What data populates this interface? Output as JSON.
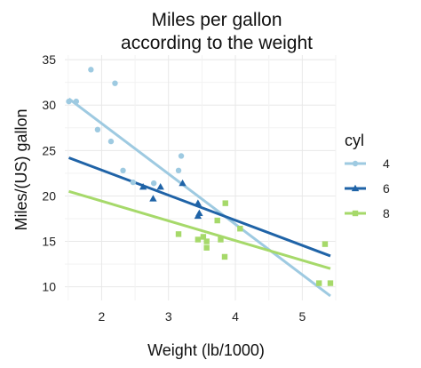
{
  "chart_data": {
    "type": "scatter",
    "title": [
      "Miles per gallon",
      "according to the weight"
    ],
    "xlabel": "Weight (lb/1000)",
    "ylabel": "Miles/(US) gallon",
    "xlim": [
      1.45,
      5.5
    ],
    "ylim": [
      8.5,
      35.5
    ],
    "xticks": [
      2,
      3,
      4,
      5
    ],
    "yticks": [
      10,
      15,
      20,
      25,
      30,
      35
    ],
    "grid": true,
    "legend_title": "cyl",
    "legend_position": "right",
    "series": [
      {
        "name": "4",
        "color": "#9ecae1",
        "marker": "circle",
        "points": [
          [
            1.51,
            30.4
          ],
          [
            1.62,
            30.4
          ],
          [
            1.84,
            33.9
          ],
          [
            1.94,
            27.3
          ],
          [
            2.14,
            26.0
          ],
          [
            2.2,
            32.4
          ],
          [
            2.32,
            22.8
          ],
          [
            2.47,
            21.5
          ],
          [
            2.78,
            21.4
          ],
          [
            3.15,
            22.8
          ],
          [
            3.19,
            24.4
          ]
        ],
        "fit": [
          [
            1.51,
            30.7
          ],
          [
            5.42,
            9.0
          ]
        ]
      },
      {
        "name": "6",
        "color": "#1f63a7",
        "marker": "triangle",
        "points": [
          [
            2.62,
            21.0
          ],
          [
            2.77,
            19.7
          ],
          [
            2.88,
            21.0
          ],
          [
            3.21,
            21.4
          ],
          [
            3.44,
            19.2
          ],
          [
            3.44,
            17.8
          ],
          [
            3.46,
            18.1
          ]
        ],
        "fit": [
          [
            1.51,
            24.2
          ],
          [
            5.42,
            13.4
          ]
        ]
      },
      {
        "name": "8",
        "color": "#a6d96a",
        "marker": "square",
        "points": [
          [
            3.15,
            15.8
          ],
          [
            3.44,
            15.2
          ],
          [
            3.52,
            15.5
          ],
          [
            3.57,
            14.3
          ],
          [
            3.57,
            15.0
          ],
          [
            3.73,
            17.3
          ],
          [
            3.78,
            15.2
          ],
          [
            3.84,
            13.3
          ],
          [
            3.85,
            19.2
          ],
          [
            4.07,
            16.4
          ],
          [
            5.25,
            10.4
          ],
          [
            5.34,
            14.7
          ],
          [
            5.42,
            10.4
          ]
        ],
        "fit": [
          [
            1.51,
            20.5
          ],
          [
            5.42,
            12.0
          ]
        ]
      }
    ]
  }
}
